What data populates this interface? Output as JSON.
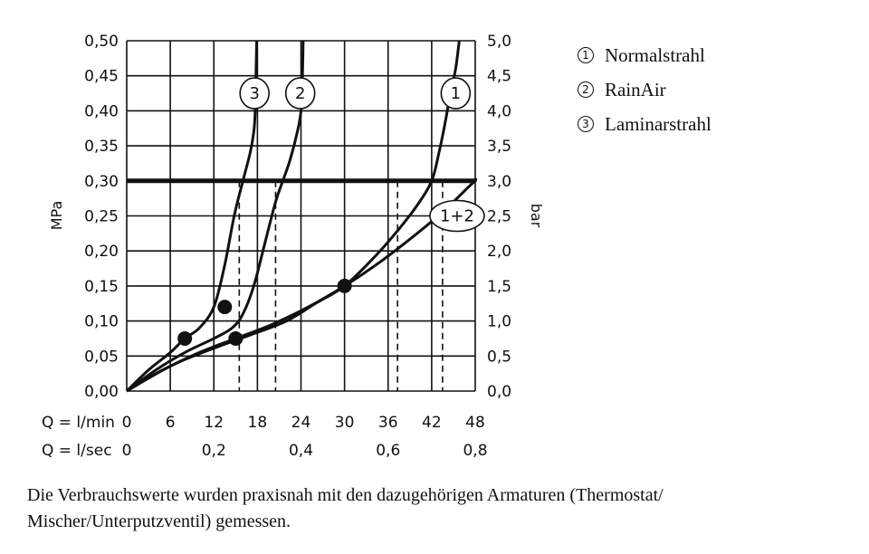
{
  "chart_data": {
    "type": "line",
    "left_axis": {
      "label": "MPa",
      "ticks": [
        "0,00",
        "0,05",
        "0,10",
        "0,15",
        "0,20",
        "0,25",
        "0,30",
        "0,35",
        "0,40",
        "0,45",
        "0,50"
      ],
      "range": [
        0,
        0.5
      ]
    },
    "right_axis": {
      "label": "bar",
      "ticks": [
        "0,0",
        "0,5",
        "1,0",
        "1,5",
        "2,0",
        "2,5",
        "3,0",
        "3,5",
        "4,0",
        "4,5",
        "5,0"
      ],
      "range": [
        0,
        5
      ]
    },
    "x_axis_lmin": {
      "label": "Q = l/min",
      "ticks": [
        "0",
        "6",
        "12",
        "18",
        "24",
        "30",
        "36",
        "42",
        "48"
      ],
      "range": [
        0,
        48
      ]
    },
    "x_axis_lsec": {
      "label": "Q = l/sec",
      "ticks": [
        "0",
        "0,2",
        "0,4",
        "0,6",
        "0,8"
      ]
    },
    "reference_line": {
      "y": 0.3
    },
    "series": [
      {
        "id": "1",
        "label": "1",
        "points": [
          [
            0,
            0
          ],
          [
            4,
            0.025
          ],
          [
            8,
            0.045
          ],
          [
            13,
            0.065
          ],
          [
            17,
            0.08
          ],
          [
            22,
            0.1
          ],
          [
            26,
            0.125
          ],
          [
            30,
            0.15
          ],
          [
            34,
            0.19
          ],
          [
            37,
            0.225
          ],
          [
            40,
            0.265
          ],
          [
            42,
            0.3
          ],
          [
            43,
            0.34
          ],
          [
            43.8,
            0.38
          ],
          [
            44.5,
            0.42
          ],
          [
            45.3,
            0.46
          ],
          [
            45.8,
            0.5
          ]
        ],
        "dashed_drop": 37.3
      },
      {
        "id": "2",
        "label": "2",
        "points": [
          [
            0,
            0
          ],
          [
            4,
            0.03
          ],
          [
            8,
            0.055
          ],
          [
            12,
            0.075
          ],
          [
            14.5,
            0.09
          ],
          [
            16,
            0.11
          ],
          [
            17.5,
            0.15
          ],
          [
            19,
            0.21
          ],
          [
            20.5,
            0.27
          ],
          [
            21.5,
            0.3
          ],
          [
            22.5,
            0.33
          ],
          [
            23.5,
            0.37
          ],
          [
            24,
            0.4
          ],
          [
            24.2,
            0.45
          ],
          [
            24.3,
            0.5
          ]
        ],
        "dashed_drop": 20.5
      },
      {
        "id": "3",
        "label": "3",
        "points": [
          [
            0,
            0
          ],
          [
            3,
            0.03
          ],
          [
            6,
            0.055
          ],
          [
            8,
            0.075
          ],
          [
            10,
            0.09
          ],
          [
            12,
            0.12
          ],
          [
            13.5,
            0.18
          ],
          [
            14.8,
            0.25
          ],
          [
            16,
            0.3
          ],
          [
            17,
            0.34
          ],
          [
            17.5,
            0.37
          ],
          [
            17.7,
            0.4
          ],
          [
            17.8,
            0.45
          ],
          [
            17.9,
            0.5
          ]
        ],
        "dashed_drop": 15.5
      },
      {
        "id": "1+2",
        "label": "1+2",
        "points": [
          [
            0,
            0
          ],
          [
            5,
            0.03
          ],
          [
            10,
            0.055
          ],
          [
            15,
            0.075
          ],
          [
            20,
            0.095
          ],
          [
            25,
            0.12
          ],
          [
            30,
            0.15
          ],
          [
            35,
            0.185
          ],
          [
            40,
            0.225
          ],
          [
            44,
            0.26
          ],
          [
            48,
            0.3
          ],
          [
            50,
            0.31
          ],
          [
            52,
            0.33
          ]
        ],
        "dashed_drop": 43.5
      }
    ],
    "markers": [
      [
        8,
        0.075
      ],
      [
        15,
        0.075
      ],
      [
        13.5,
        0.12
      ],
      [
        30,
        0.15
      ]
    ],
    "legend": [
      {
        "num": "1",
        "text": "Normalstrahl"
      },
      {
        "num": "2",
        "text": "RainAir"
      },
      {
        "num": "3",
        "text": "Laminarstrahl"
      }
    ]
  },
  "caption": "Die Verbrauchswerte wurden praxisnah mit den dazugehörigen Armaturen (Thermostat/ Mischer/Unterputzventil) gemessen."
}
